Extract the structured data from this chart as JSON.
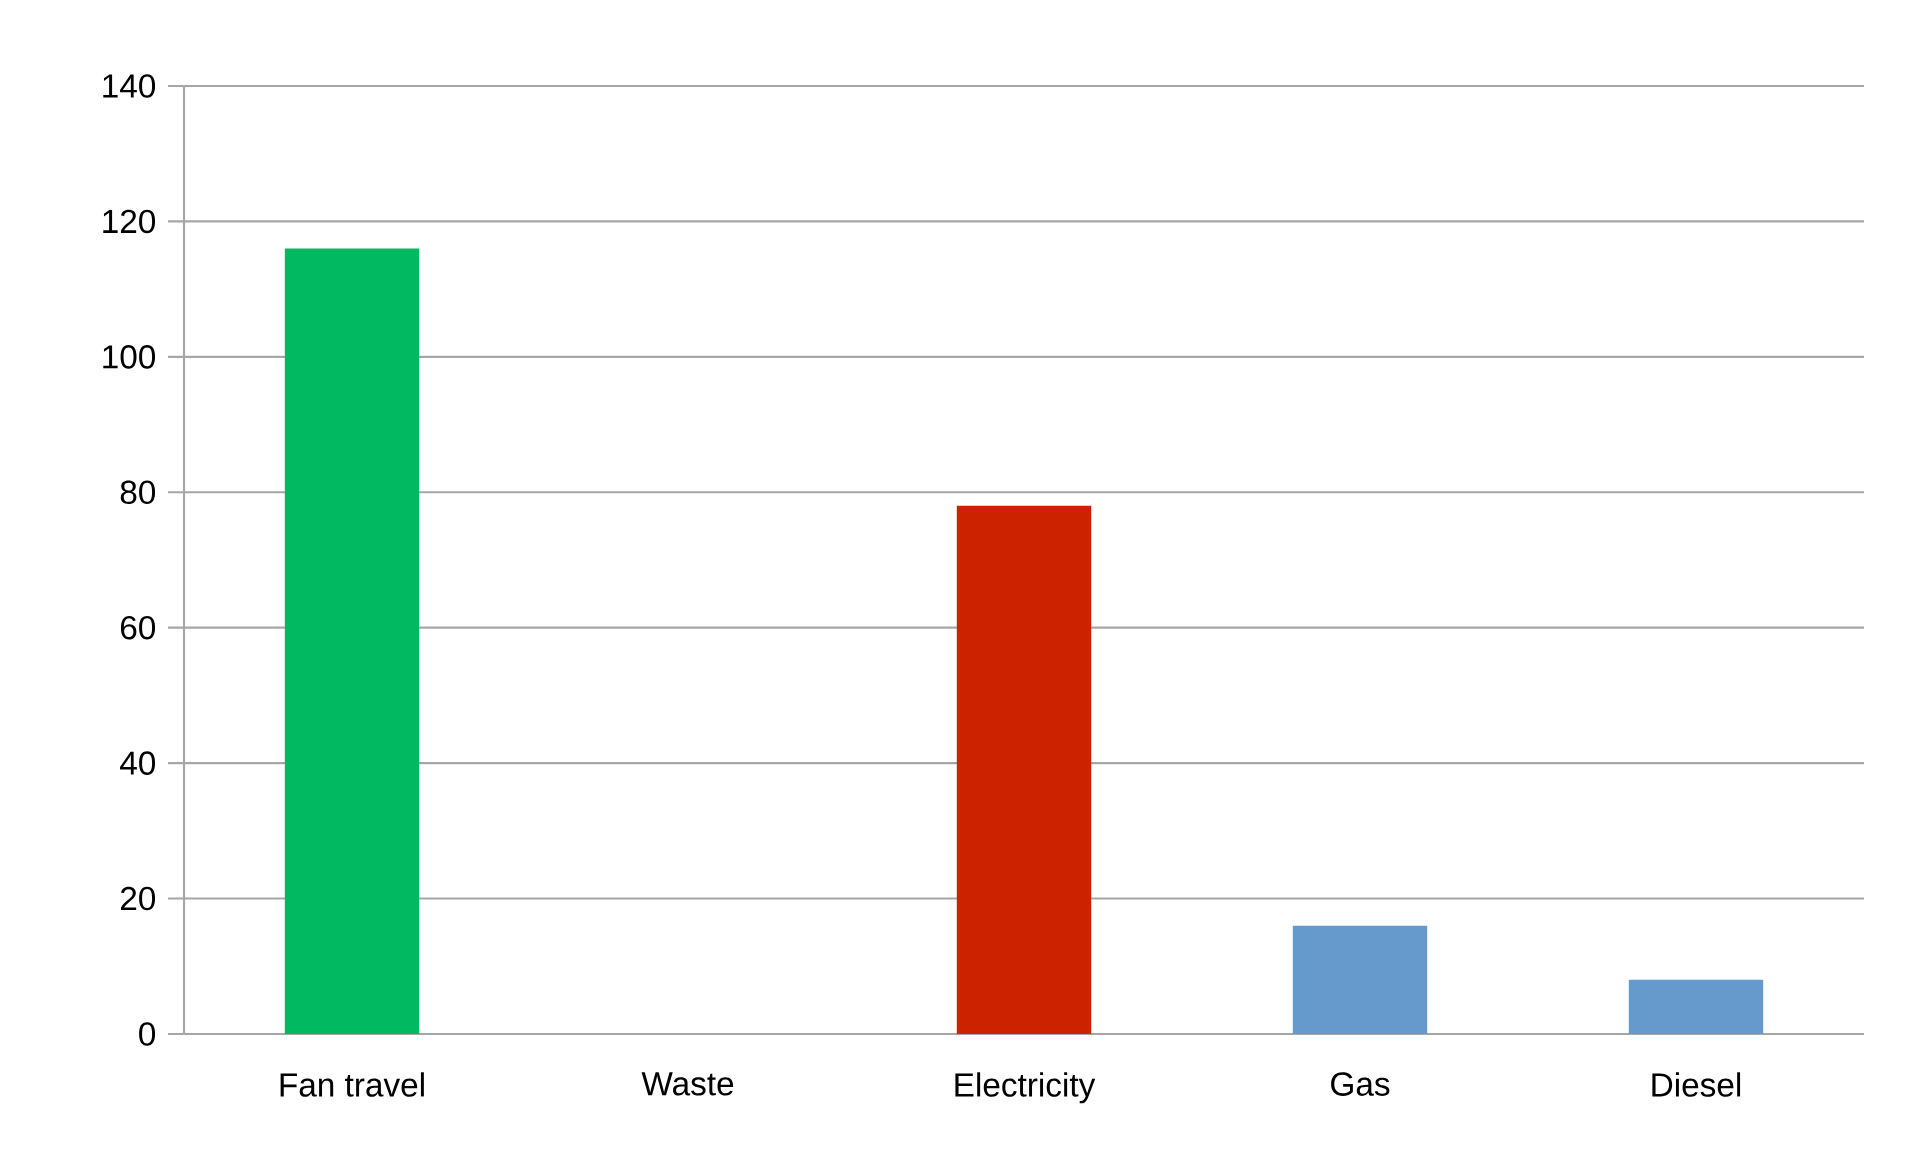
{
  "chart_data": {
    "type": "bar",
    "categories": [
      "Fan travel",
      "Waste",
      "Electricity",
      "Gas",
      "Diesel"
    ],
    "values": [
      116,
      0,
      78,
      16,
      8
    ],
    "colors": [
      "#00b960",
      "#cc2200",
      "#cc2200",
      "#6699cc",
      "#6699cc"
    ],
    "ylim": [
      0,
      140
    ],
    "yticks": [
      0,
      20,
      40,
      60,
      80,
      100,
      120,
      140
    ],
    "grid": "y"
  }
}
